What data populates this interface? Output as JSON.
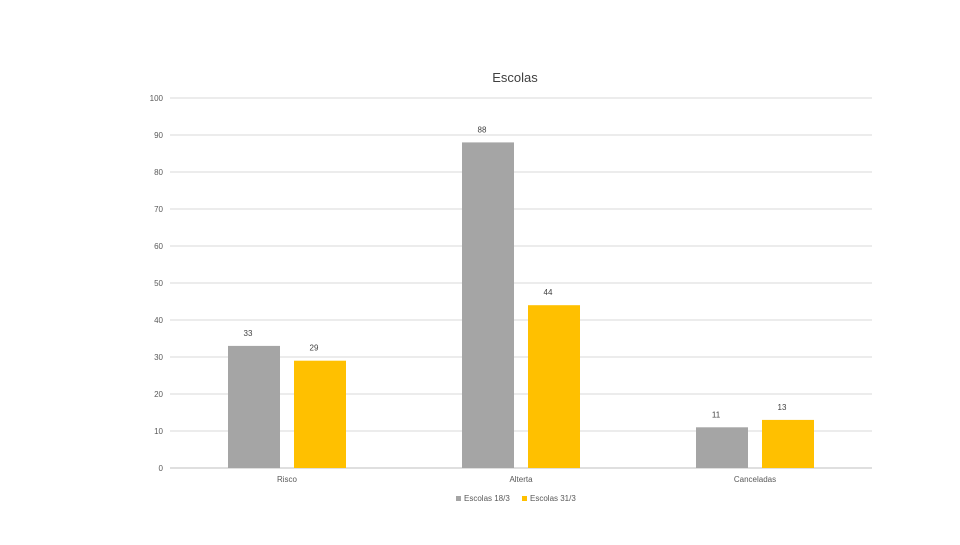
{
  "chart_data": {
    "type": "bar",
    "title": "Escolas",
    "xlabel": "",
    "ylabel": "",
    "categories": [
      "Risco",
      "Alterta",
      "Canceladas"
    ],
    "series": [
      {
        "name": "Escolas 18/3",
        "values": [
          33,
          88,
          11
        ],
        "color": "#a5a5a5"
      },
      {
        "name": "Escolas 31/3",
        "values": [
          29,
          44,
          13
        ],
        "color": "#ffc000"
      }
    ],
    "ylim": [
      0,
      100
    ],
    "yticks": [
      0,
      10,
      20,
      30,
      40,
      50,
      60,
      70,
      80,
      90,
      100
    ],
    "grid": true,
    "legend": "bottom"
  }
}
